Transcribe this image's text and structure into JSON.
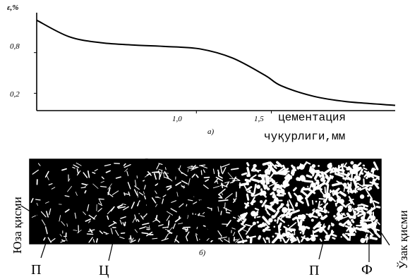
{
  "chart_data": {
    "type": "line",
    "y_axis_label": "ε,%",
    "y_ticks": [
      "0,8",
      "0,2"
    ],
    "x_ticks": [
      "1,0",
      "1,5"
    ],
    "x_axis_title_line1": "цементация",
    "x_axis_title_line2": "чуқурлиги,мм",
    "panel_label": "а)",
    "curve": {
      "x": [
        0.0,
        0.2,
        0.4,
        0.6,
        0.8,
        1.0,
        1.2,
        1.4,
        1.5,
        1.7,
        1.9,
        2.2
      ],
      "y": [
        1.2,
        0.98,
        0.9,
        0.87,
        0.85,
        0.82,
        0.7,
        0.47,
        0.33,
        0.19,
        0.12,
        0.07
      ]
    }
  },
  "micrograph": {
    "panel_label": "б)",
    "left_label": "Юза қисми",
    "right_label": "Ўзак қисми",
    "callouts": [
      "П",
      "Ц",
      "П",
      "Ф"
    ]
  }
}
